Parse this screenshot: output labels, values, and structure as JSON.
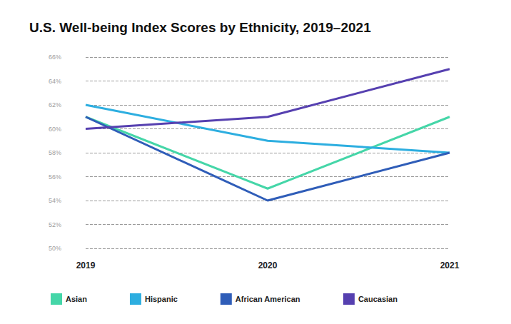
{
  "chart_data": {
    "type": "line",
    "title": "U.S. Well-being Index Scores by Ethnicity, 2019–2021",
    "categories": [
      "2019",
      "2020",
      "2021"
    ],
    "series": [
      {
        "name": "Asian",
        "color": "#45d6a8",
        "values": [
          61,
          55,
          61
        ]
      },
      {
        "name": "Hispanic",
        "color": "#2daee0",
        "values": [
          62,
          59,
          58
        ]
      },
      {
        "name": "African American",
        "color": "#2f5db8",
        "values": [
          61,
          54,
          58
        ]
      },
      {
        "name": "Caucasian",
        "color": "#5640b0",
        "values": [
          60,
          61,
          65
        ]
      }
    ],
    "ylim": [
      50,
      66
    ],
    "yticks": [
      {
        "value": 50,
        "label": "50%"
      },
      {
        "value": 52,
        "label": "52%"
      },
      {
        "value": 54,
        "label": "54%"
      },
      {
        "value": 56,
        "label": "56%"
      },
      {
        "value": 58,
        "label": "58%"
      },
      {
        "value": 60,
        "label": "60%"
      },
      {
        "value": 62,
        "label": "62%"
      },
      {
        "value": 64,
        "label": "64%"
      },
      {
        "value": 66,
        "label": "66%"
      }
    ],
    "grid": true,
    "legend": "bottom-left"
  }
}
